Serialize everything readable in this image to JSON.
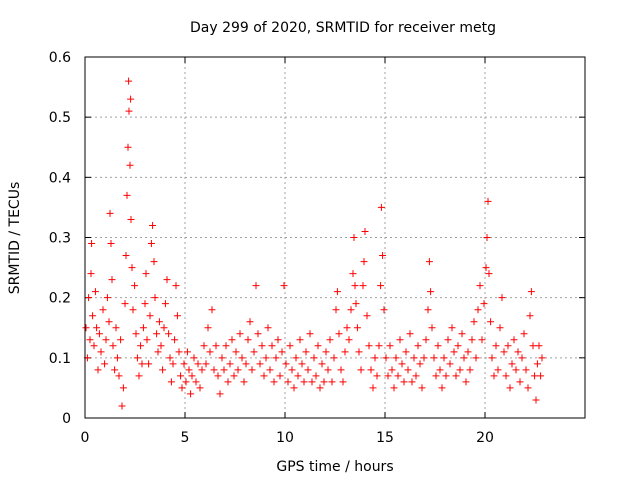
{
  "chart_data": {
    "type": "scatter",
    "title": "Day 299 of 2020, SRMTID for receiver metg",
    "xlabel": "GPS time / hours",
    "ylabel": "SRMTID / TECUs",
    "xlim": [
      0,
      25
    ],
    "ylim": [
      0,
      0.6
    ],
    "xticks": [
      0,
      5,
      10,
      15,
      20
    ],
    "xtick_labels": [
      "0",
      "5",
      "10",
      "15",
      "20"
    ],
    "yticks": [
      0,
      0.1,
      0.2,
      0.3,
      0.4,
      0.5,
      0.6
    ],
    "ytick_labels": [
      "0",
      "0.1",
      "0.2",
      "0.3",
      "0.4",
      "0.5",
      "0.6"
    ],
    "grid": true,
    "marker": "+",
    "color": "#ff0000",
    "series": [
      {
        "name": "SRMTID",
        "points": [
          [
            0.05,
            0.15
          ],
          [
            0.12,
            0.1
          ],
          [
            0.18,
            0.2
          ],
          [
            0.25,
            0.13
          ],
          [
            0.3,
            0.24
          ],
          [
            0.33,
            0.29
          ],
          [
            0.38,
            0.17
          ],
          [
            0.45,
            0.12
          ],
          [
            0.52,
            0.21
          ],
          [
            0.58,
            0.15
          ],
          [
            0.65,
            0.08
          ],
          [
            0.72,
            0.14
          ],
          [
            0.8,
            0.11
          ],
          [
            0.9,
            0.18
          ],
          [
            0.98,
            0.09
          ],
          [
            1.05,
            0.13
          ],
          [
            1.12,
            0.2
          ],
          [
            1.2,
            0.16
          ],
          [
            1.25,
            0.34
          ],
          [
            1.3,
            0.29
          ],
          [
            1.35,
            0.23
          ],
          [
            1.4,
            0.12
          ],
          [
            1.48,
            0.08
          ],
          [
            1.55,
            0.15
          ],
          [
            1.62,
            0.1
          ],
          [
            1.7,
            0.07
          ],
          [
            1.78,
            0.13
          ],
          [
            1.85,
            0.02
          ],
          [
            1.92,
            0.05
          ],
          [
            2.0,
            0.19
          ],
          [
            2.05,
            0.27
          ],
          [
            2.1,
            0.37
          ],
          [
            2.15,
            0.45
          ],
          [
            2.18,
            0.56
          ],
          [
            2.2,
            0.51
          ],
          [
            2.25,
            0.42
          ],
          [
            2.28,
            0.53
          ],
          [
            2.3,
            0.33
          ],
          [
            2.35,
            0.25
          ],
          [
            2.4,
            0.18
          ],
          [
            2.48,
            0.22
          ],
          [
            2.55,
            0.14
          ],
          [
            2.62,
            0.1
          ],
          [
            2.7,
            0.07
          ],
          [
            2.78,
            0.12
          ],
          [
            2.85,
            0.09
          ],
          [
            2.92,
            0.15
          ],
          [
            3.0,
            0.19
          ],
          [
            3.05,
            0.24
          ],
          [
            3.1,
            0.13
          ],
          [
            3.18,
            0.09
          ],
          [
            3.25,
            0.17
          ],
          [
            3.32,
            0.29
          ],
          [
            3.38,
            0.32
          ],
          [
            3.45,
            0.26
          ],
          [
            3.5,
            0.2
          ],
          [
            3.58,
            0.14
          ],
          [
            3.65,
            0.11
          ],
          [
            3.72,
            0.16
          ],
          [
            3.8,
            0.12
          ],
          [
            3.88,
            0.08
          ],
          [
            3.95,
            0.15
          ],
          [
            4.02,
            0.19
          ],
          [
            4.1,
            0.23
          ],
          [
            4.18,
            0.14
          ],
          [
            4.25,
            0.1
          ],
          [
            4.32,
            0.06
          ],
          [
            4.4,
            0.09
          ],
          [
            4.48,
            0.13
          ],
          [
            4.55,
            0.22
          ],
          [
            4.62,
            0.17
          ],
          [
            4.7,
            0.11
          ],
          [
            4.78,
            0.07
          ],
          [
            4.85,
            0.05
          ],
          [
            4.95,
            0.09
          ],
          [
            5.05,
            0.06
          ],
          [
            5.12,
            0.11
          ],
          [
            5.2,
            0.08
          ],
          [
            5.28,
            0.04
          ],
          [
            5.35,
            0.07
          ],
          [
            5.45,
            0.1
          ],
          [
            5.55,
            0.06
          ],
          [
            5.65,
            0.09
          ],
          [
            5.75,
            0.05
          ],
          [
            5.85,
            0.08
          ],
          [
            5.95,
            0.12
          ],
          [
            6.05,
            0.09
          ],
          [
            6.15,
            0.15
          ],
          [
            6.25,
            0.11
          ],
          [
            6.35,
            0.18
          ],
          [
            6.45,
            0.08
          ],
          [
            6.55,
            0.12
          ],
          [
            6.65,
            0.07
          ],
          [
            6.75,
            0.04
          ],
          [
            6.85,
            0.1
          ],
          [
            6.95,
            0.08
          ],
          [
            7.05,
            0.12
          ],
          [
            7.15,
            0.06
          ],
          [
            7.25,
            0.09
          ],
          [
            7.35,
            0.13
          ],
          [
            7.45,
            0.07
          ],
          [
            7.55,
            0.11
          ],
          [
            7.65,
            0.08
          ],
          [
            7.75,
            0.14
          ],
          [
            7.85,
            0.1
          ],
          [
            7.95,
            0.06
          ],
          [
            8.05,
            0.09
          ],
          [
            8.15,
            0.13
          ],
          [
            8.25,
            0.16
          ],
          [
            8.35,
            0.08
          ],
          [
            8.45,
            0.11
          ],
          [
            8.55,
            0.22
          ],
          [
            8.65,
            0.14
          ],
          [
            8.75,
            0.09
          ],
          [
            8.85,
            0.12
          ],
          [
            8.95,
            0.07
          ],
          [
            9.05,
            0.1
          ],
          [
            9.15,
            0.15
          ],
          [
            9.25,
            0.08
          ],
          [
            9.35,
            0.12
          ],
          [
            9.45,
            0.06
          ],
          [
            9.55,
            0.1
          ],
          [
            9.65,
            0.13
          ],
          [
            9.75,
            0.07
          ],
          [
            9.85,
            0.11
          ],
          [
            9.95,
            0.22
          ],
          [
            10.05,
            0.09
          ],
          [
            10.15,
            0.06
          ],
          [
            10.25,
            0.12
          ],
          [
            10.35,
            0.08
          ],
          [
            10.45,
            0.05
          ],
          [
            10.55,
            0.1
          ],
          [
            10.65,
            0.07
          ],
          [
            10.75,
            0.13
          ],
          [
            10.85,
            0.09
          ],
          [
            10.95,
            0.06
          ],
          [
            11.05,
            0.11
          ],
          [
            11.15,
            0.08
          ],
          [
            11.25,
            0.14
          ],
          [
            11.35,
            0.06
          ],
          [
            11.45,
            0.1
          ],
          [
            11.55,
            0.07
          ],
          [
            11.65,
            0.12
          ],
          [
            11.75,
            0.05
          ],
          [
            11.85,
            0.09
          ],
          [
            11.95,
            0.06
          ],
          [
            12.05,
            0.11
          ],
          [
            12.15,
            0.08
          ],
          [
            12.25,
            0.13
          ],
          [
            12.35,
            0.06
          ],
          [
            12.45,
            0.1
          ],
          [
            12.55,
            0.18
          ],
          [
            12.62,
            0.21
          ],
          [
            12.7,
            0.14
          ],
          [
            12.8,
            0.08
          ],
          [
            12.9,
            0.06
          ],
          [
            13.0,
            0.11
          ],
          [
            13.1,
            0.15
          ],
          [
            13.2,
            0.13
          ],
          [
            13.3,
            0.18
          ],
          [
            13.4,
            0.24
          ],
          [
            13.45,
            0.3
          ],
          [
            13.5,
            0.22
          ],
          [
            13.55,
            0.19
          ],
          [
            13.62,
            0.15
          ],
          [
            13.7,
            0.11
          ],
          [
            13.8,
            0.08
          ],
          [
            13.9,
            0.22
          ],
          [
            13.95,
            0.26
          ],
          [
            14.0,
            0.31
          ],
          [
            14.1,
            0.17
          ],
          [
            14.2,
            0.12
          ],
          [
            14.3,
            0.08
          ],
          [
            14.4,
            0.05
          ],
          [
            14.5,
            0.1
          ],
          [
            14.6,
            0.07
          ],
          [
            14.7,
            0.12
          ],
          [
            14.78,
            0.22
          ],
          [
            14.82,
            0.35
          ],
          [
            14.88,
            0.27
          ],
          [
            14.95,
            0.18
          ],
          [
            15.05,
            0.1
          ],
          [
            15.15,
            0.07
          ],
          [
            15.25,
            0.12
          ],
          [
            15.35,
            0.08
          ],
          [
            15.45,
            0.05
          ],
          [
            15.55,
            0.1
          ],
          [
            15.65,
            0.07
          ],
          [
            15.75,
            0.13
          ],
          [
            15.85,
            0.09
          ],
          [
            15.95,
            0.06
          ],
          [
            16.05,
            0.11
          ],
          [
            16.15,
            0.08
          ],
          [
            16.25,
            0.14
          ],
          [
            16.35,
            0.06
          ],
          [
            16.45,
            0.1
          ],
          [
            16.55,
            0.07
          ],
          [
            16.65,
            0.12
          ],
          [
            16.75,
            0.09
          ],
          [
            16.85,
            0.05
          ],
          [
            16.95,
            0.1
          ],
          [
            17.05,
            0.13
          ],
          [
            17.15,
            0.18
          ],
          [
            17.22,
            0.26
          ],
          [
            17.28,
            0.21
          ],
          [
            17.35,
            0.15
          ],
          [
            17.45,
            0.1
          ],
          [
            17.55,
            0.07
          ],
          [
            17.65,
            0.12
          ],
          [
            17.75,
            0.08
          ],
          [
            17.85,
            0.05
          ],
          [
            17.95,
            0.1
          ],
          [
            18.05,
            0.07
          ],
          [
            18.15,
            0.13
          ],
          [
            18.25,
            0.09
          ],
          [
            18.35,
            0.15
          ],
          [
            18.45,
            0.11
          ],
          [
            18.55,
            0.07
          ],
          [
            18.65,
            0.12
          ],
          [
            18.75,
            0.08
          ],
          [
            18.85,
            0.14
          ],
          [
            18.95,
            0.1
          ],
          [
            19.05,
            0.06
          ],
          [
            19.15,
            0.11
          ],
          [
            19.25,
            0.08
          ],
          [
            19.35,
            0.13
          ],
          [
            19.45,
            0.16
          ],
          [
            19.55,
            0.1
          ],
          [
            19.65,
            0.18
          ],
          [
            19.75,
            0.22
          ],
          [
            19.85,
            0.13
          ],
          [
            19.95,
            0.19
          ],
          [
            20.05,
            0.25
          ],
          [
            20.1,
            0.3
          ],
          [
            20.15,
            0.36
          ],
          [
            20.2,
            0.24
          ],
          [
            20.28,
            0.16
          ],
          [
            20.35,
            0.1
          ],
          [
            20.45,
            0.07
          ],
          [
            20.55,
            0.12
          ],
          [
            20.65,
            0.08
          ],
          [
            20.75,
            0.15
          ],
          [
            20.85,
            0.2
          ],
          [
            20.95,
            0.11
          ],
          [
            21.05,
            0.07
          ],
          [
            21.15,
            0.12
          ],
          [
            21.25,
            0.05
          ],
          [
            21.35,
            0.09
          ],
          [
            21.45,
            0.13
          ],
          [
            21.55,
            0.08
          ],
          [
            21.65,
            0.11
          ],
          [
            21.75,
            0.06
          ],
          [
            21.85,
            0.1
          ],
          [
            21.95,
            0.14
          ],
          [
            22.05,
            0.08
          ],
          [
            22.15,
            0.05
          ],
          [
            22.25,
            0.17
          ],
          [
            22.32,
            0.21
          ],
          [
            22.4,
            0.12
          ],
          [
            22.48,
            0.07
          ],
          [
            22.55,
            0.03
          ],
          [
            22.62,
            0.09
          ],
          [
            22.7,
            0.12
          ],
          [
            22.78,
            0.07
          ],
          [
            22.85,
            0.1
          ]
        ]
      }
    ]
  }
}
